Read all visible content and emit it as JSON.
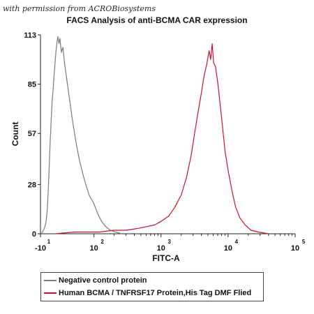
{
  "watermark": "with permission from ACROBiosystems",
  "chart_data": {
    "type": "area",
    "title": "FACS Analysis of anti-BCMA CAR expression",
    "xlabel": "FITC-A",
    "ylabel": "Count",
    "xscale": "log",
    "xlim": [
      -10,
      100000
    ],
    "ylim": [
      0,
      113
    ],
    "y_ticks": [
      0,
      28,
      57,
      85,
      113
    ],
    "x_ticks": [
      {
        "base": "-10",
        "exp": "1",
        "value": -10
      },
      {
        "base": "10",
        "exp": "2",
        "value": 100
      },
      {
        "base": "10",
        "exp": "3",
        "value": 1000
      },
      {
        "base": "10",
        "exp": "4",
        "value": 10000
      },
      {
        "base": "10",
        "exp": "5",
        "value": 100000
      }
    ],
    "grid": false,
    "legend_position": "bottom",
    "series": [
      {
        "name": "Negative control protein",
        "color": "#7a7a7a",
        "points": [
          [
            -8,
            0
          ],
          [
            -6,
            1
          ],
          [
            -4,
            2
          ],
          [
            -2,
            3
          ],
          [
            0,
            5
          ],
          [
            2,
            8
          ],
          [
            4,
            14
          ],
          [
            6,
            24
          ],
          [
            8,
            38
          ],
          [
            10,
            52
          ],
          [
            12,
            64
          ],
          [
            14,
            75
          ],
          [
            16,
            82
          ],
          [
            18,
            90
          ],
          [
            20,
            97
          ],
          [
            22,
            104
          ],
          [
            24,
            109
          ],
          [
            26,
            112
          ],
          [
            28,
            108
          ],
          [
            30,
            111
          ],
          [
            33,
            103
          ],
          [
            36,
            106
          ],
          [
            40,
            96
          ],
          [
            45,
            86
          ],
          [
            50,
            76
          ],
          [
            56,
            64
          ],
          [
            63,
            52
          ],
          [
            70,
            42
          ],
          [
            80,
            31
          ],
          [
            90,
            22
          ],
          [
            100,
            17
          ],
          [
            115,
            11
          ],
          [
            130,
            7
          ],
          [
            150,
            4
          ],
          [
            175,
            2
          ],
          [
            210,
            1
          ],
          [
            260,
            0
          ]
        ]
      },
      {
        "name": "Human BCMA / TNFRSF17 Protein,His Tag DMF Flied",
        "color": "#c8102e",
        "points": [
          [
            20,
            0
          ],
          [
            60,
            1
          ],
          [
            120,
            1
          ],
          [
            200,
            2
          ],
          [
            300,
            2
          ],
          [
            450,
            3
          ],
          [
            600,
            4
          ],
          [
            800,
            5
          ],
          [
            1000,
            7
          ],
          [
            1300,
            10
          ],
          [
            1600,
            15
          ],
          [
            2000,
            22
          ],
          [
            2400,
            32
          ],
          [
            2800,
            44
          ],
          [
            3200,
            58
          ],
          [
            3600,
            70
          ],
          [
            4000,
            80
          ],
          [
            4400,
            90
          ],
          [
            4800,
            96
          ],
          [
            5200,
            104
          ],
          [
            5500,
            99
          ],
          [
            5800,
            108
          ],
          [
            6100,
            97
          ],
          [
            6500,
            95
          ],
          [
            7000,
            86
          ],
          [
            7600,
            74
          ],
          [
            8300,
            60
          ],
          [
            9000,
            47
          ],
          [
            10000,
            36
          ],
          [
            11500,
            24
          ],
          [
            13000,
            15
          ],
          [
            15000,
            9
          ],
          [
            18000,
            5
          ],
          [
            22000,
            2
          ],
          [
            28000,
            1
          ],
          [
            40000,
            0
          ]
        ]
      }
    ]
  }
}
